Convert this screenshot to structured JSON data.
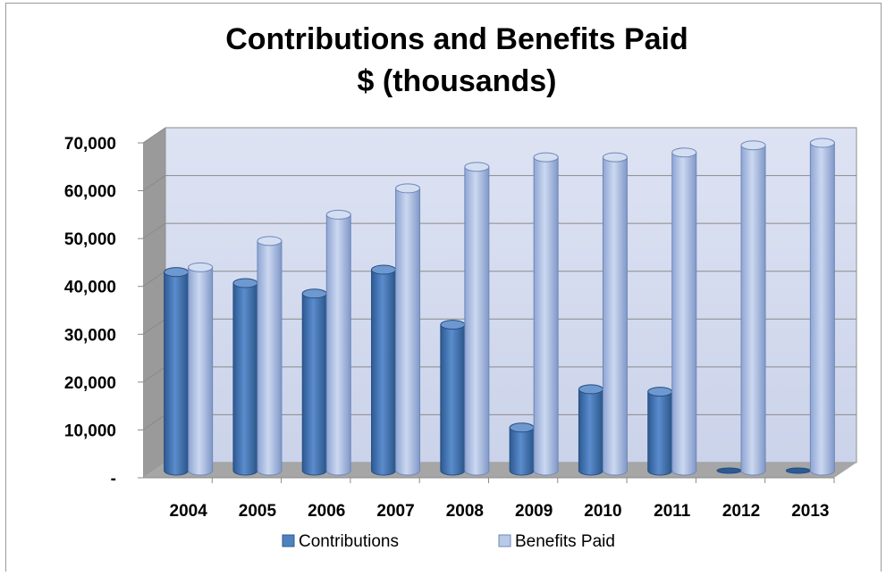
{
  "chart_data": {
    "type": "bar",
    "title": "Contributions and Benefits Paid",
    "subtitle": "$ (thousands)",
    "xlabel": "",
    "ylabel": "",
    "categories": [
      "2004",
      "2005",
      "2006",
      "2007",
      "2008",
      "2009",
      "2010",
      "2011",
      "2012",
      "2013"
    ],
    "series": [
      {
        "name": "Contributions",
        "color": "#4f81bd",
        "values": [
          41500,
          39200,
          37000,
          42000,
          30500,
          9000,
          17000,
          16500,
          0,
          0
        ]
      },
      {
        "name": "Benefits Paid",
        "color": "#b9c9e8",
        "values": [
          42500,
          48000,
          53500,
          59000,
          63500,
          65500,
          65500,
          66500,
          68000,
          68500
        ]
      }
    ],
    "ylim": [
      0,
      70000
    ],
    "ytick_values": [
      0,
      10000,
      20000,
      30000,
      40000,
      50000,
      60000,
      70000
    ],
    "ytick_labels": [
      "-",
      "10,000",
      "20,000",
      "30,000",
      "40,000",
      "50,000",
      "60,000",
      "70,000"
    ],
    "grid": true,
    "legend_position": "bottom"
  }
}
